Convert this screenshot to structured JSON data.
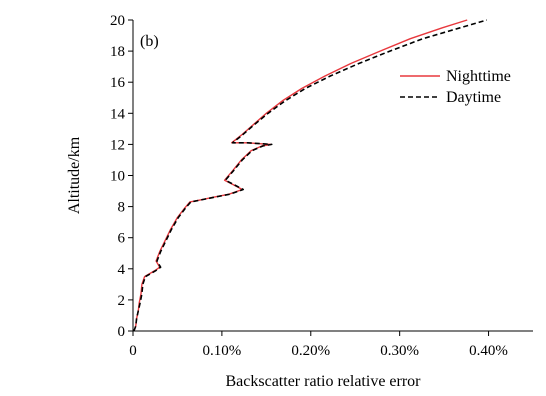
{
  "chart_data": {
    "type": "line",
    "title": "",
    "panel_label": "(b)",
    "xlabel": "Backscatter ratio relative error",
    "ylabel": "Altitude/km",
    "xlim": [
      0,
      0.45
    ],
    "ylim": [
      0,
      20
    ],
    "x_unit": "%",
    "xticks": [
      0,
      0.1,
      0.2,
      0.3,
      0.4
    ],
    "xtick_labels": [
      "0",
      "0.10%",
      "0.20%",
      "0.30%",
      "0.40%"
    ],
    "yticks": [
      0,
      2,
      4,
      6,
      8,
      10,
      12,
      14,
      16,
      18,
      20
    ],
    "ytick_labels": [
      "0",
      "2",
      "4",
      "6",
      "8",
      "10",
      "12",
      "14",
      "16",
      "18",
      "20"
    ],
    "grid": false,
    "legend_position": "top-right",
    "series": [
      {
        "name": "Nighttime",
        "color": "#e8383d",
        "style": "solid",
        "points": [
          [
            0.001,
            0
          ],
          [
            0.003,
            0.3
          ],
          [
            0.004,
            0.8
          ],
          [
            0.006,
            1.3
          ],
          [
            0.007,
            1.8
          ],
          [
            0.009,
            2.4
          ],
          [
            0.01,
            3.0
          ],
          [
            0.013,
            3.5
          ],
          [
            0.019,
            3.7
          ],
          [
            0.025,
            3.9
          ],
          [
            0.03,
            4.1
          ],
          [
            0.026,
            4.5
          ],
          [
            0.03,
            5.1
          ],
          [
            0.036,
            5.8
          ],
          [
            0.042,
            6.5
          ],
          [
            0.05,
            7.3
          ],
          [
            0.058,
            7.9
          ],
          [
            0.064,
            8.3
          ],
          [
            0.073,
            8.4
          ],
          [
            0.09,
            8.6
          ],
          [
            0.108,
            8.8
          ],
          [
            0.123,
            9.1
          ],
          [
            0.113,
            9.4
          ],
          [
            0.103,
            9.7
          ],
          [
            0.112,
            10.3
          ],
          [
            0.122,
            11.0
          ],
          [
            0.133,
            11.6
          ],
          [
            0.145,
            11.9
          ],
          [
            0.155,
            12.0
          ],
          [
            0.128,
            12.1
          ],
          [
            0.111,
            12.1
          ],
          [
            0.122,
            12.6
          ],
          [
            0.136,
            13.3
          ],
          [
            0.15,
            14.0
          ],
          [
            0.168,
            14.8
          ],
          [
            0.19,
            15.6
          ],
          [
            0.216,
            16.4
          ],
          [
            0.245,
            17.2
          ],
          [
            0.278,
            18.0
          ],
          [
            0.312,
            18.8
          ],
          [
            0.348,
            19.5
          ],
          [
            0.376,
            20.0
          ]
        ]
      },
      {
        "name": "Daytime",
        "color": "#000000",
        "style": "dashed",
        "points": [
          [
            0.001,
            0
          ],
          [
            0.003,
            0.3
          ],
          [
            0.004,
            0.8
          ],
          [
            0.006,
            1.3
          ],
          [
            0.008,
            1.8
          ],
          [
            0.01,
            2.4
          ],
          [
            0.011,
            3.0
          ],
          [
            0.014,
            3.5
          ],
          [
            0.02,
            3.7
          ],
          [
            0.026,
            3.9
          ],
          [
            0.031,
            4.1
          ],
          [
            0.027,
            4.5
          ],
          [
            0.031,
            5.1
          ],
          [
            0.037,
            5.8
          ],
          [
            0.043,
            6.5
          ],
          [
            0.051,
            7.3
          ],
          [
            0.059,
            7.9
          ],
          [
            0.065,
            8.3
          ],
          [
            0.074,
            8.4
          ],
          [
            0.091,
            8.6
          ],
          [
            0.109,
            8.8
          ],
          [
            0.124,
            9.1
          ],
          [
            0.114,
            9.4
          ],
          [
            0.104,
            9.7
          ],
          [
            0.113,
            10.3
          ],
          [
            0.123,
            11.0
          ],
          [
            0.134,
            11.6
          ],
          [
            0.146,
            11.9
          ],
          [
            0.156,
            12.0
          ],
          [
            0.129,
            12.1
          ],
          [
            0.112,
            12.1
          ],
          [
            0.123,
            12.6
          ],
          [
            0.137,
            13.3
          ],
          [
            0.152,
            14.0
          ],
          [
            0.171,
            14.8
          ],
          [
            0.194,
            15.6
          ],
          [
            0.222,
            16.4
          ],
          [
            0.254,
            17.2
          ],
          [
            0.289,
            18.0
          ],
          [
            0.326,
            18.8
          ],
          [
            0.368,
            19.5
          ],
          [
            0.398,
            20.0
          ]
        ]
      }
    ]
  }
}
